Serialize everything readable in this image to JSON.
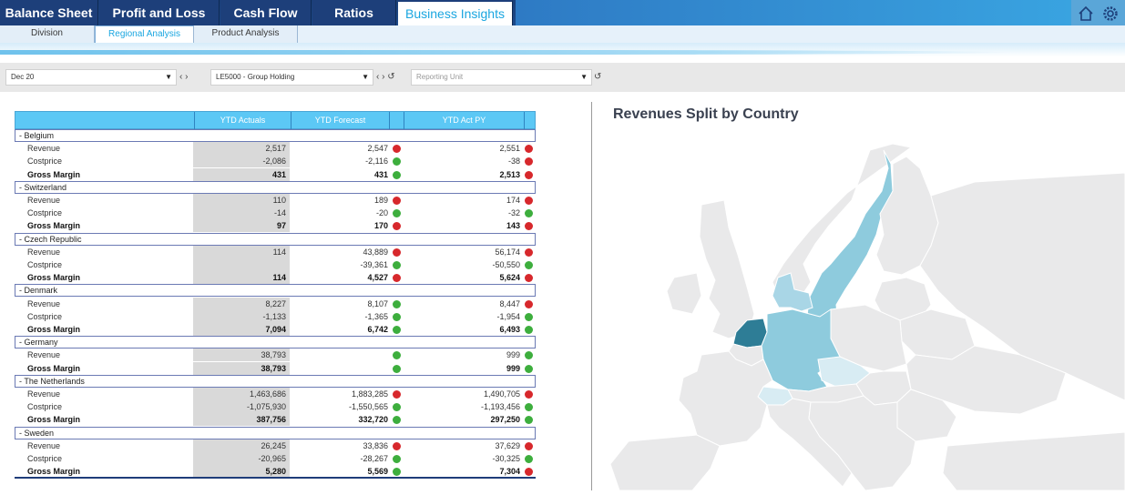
{
  "nav": {
    "tabs": [
      "Balance Sheet",
      "Profit and Loss",
      "Cash Flow",
      "Ratios",
      "Business Insights"
    ],
    "active_tab": "Business Insights",
    "icons": [
      "home-icon",
      "gear-icon"
    ]
  },
  "subnav": {
    "tabs": [
      "Division",
      "Regional Analysis",
      "Product Analysis"
    ],
    "active_tab": "Regional Analysis"
  },
  "filters": {
    "period": "Dec 20",
    "entity": "LE5000 - Group Holding",
    "reporting_unit_placeholder": "Reporting Unit"
  },
  "table": {
    "headers": [
      "YTD Actuals",
      "YTD Forecast",
      "YTD Act PY"
    ],
    "groups": [
      {
        "name": "-  Belgium",
        "rows": [
          {
            "label": "Revenue",
            "actual": "2,517",
            "forecast": "2,547",
            "fc_status": "red",
            "py": "2,551",
            "py_status": "red",
            "bold": false
          },
          {
            "label": "Costprice",
            "actual": "-2,086",
            "forecast": "-2,116",
            "fc_status": "green",
            "py": "-38",
            "py_status": "red",
            "bold": false
          },
          {
            "label": "Gross Margin",
            "actual": "431",
            "forecast": "431",
            "fc_status": "green",
            "py": "2,513",
            "py_status": "red",
            "bold": true
          }
        ]
      },
      {
        "name": "-  Switzerland",
        "rows": [
          {
            "label": "Revenue",
            "actual": "110",
            "forecast": "189",
            "fc_status": "red",
            "py": "174",
            "py_status": "red",
            "bold": false
          },
          {
            "label": "Costprice",
            "actual": "-14",
            "forecast": "-20",
            "fc_status": "green",
            "py": "-32",
            "py_status": "green",
            "bold": false
          },
          {
            "label": "Gross Margin",
            "actual": "97",
            "forecast": "170",
            "fc_status": "red",
            "py": "143",
            "py_status": "red",
            "bold": true
          }
        ]
      },
      {
        "name": "-  Czech Republic",
        "rows": [
          {
            "label": "Revenue",
            "actual": "114",
            "forecast": "43,889",
            "fc_status": "red",
            "py": "56,174",
            "py_status": "red",
            "bold": false
          },
          {
            "label": "Costprice",
            "actual": "",
            "forecast": "-39,361",
            "fc_status": "green",
            "py": "-50,550",
            "py_status": "green",
            "bold": false
          },
          {
            "label": "Gross Margin",
            "actual": "114",
            "forecast": "4,527",
            "fc_status": "red",
            "py": "5,624",
            "py_status": "red",
            "bold": true
          }
        ]
      },
      {
        "name": "-  Denmark",
        "rows": [
          {
            "label": "Revenue",
            "actual": "8,227",
            "forecast": "8,107",
            "fc_status": "green",
            "py": "8,447",
            "py_status": "red",
            "bold": false
          },
          {
            "label": "Costprice",
            "actual": "-1,133",
            "forecast": "-1,365",
            "fc_status": "green",
            "py": "-1,954",
            "py_status": "green",
            "bold": false
          },
          {
            "label": "Gross Margin",
            "actual": "7,094",
            "forecast": "6,742",
            "fc_status": "green",
            "py": "6,493",
            "py_status": "green",
            "bold": true
          }
        ]
      },
      {
        "name": "-  Germany",
        "rows": [
          {
            "label": "Revenue",
            "actual": "38,793",
            "forecast": "",
            "fc_status": "green",
            "py": "999",
            "py_status": "green",
            "bold": false
          },
          {
            "label": "Gross Margin",
            "actual": "38,793",
            "forecast": "",
            "fc_status": "green",
            "py": "999",
            "py_status": "green",
            "bold": true
          }
        ]
      },
      {
        "name": "-  The Netherlands",
        "rows": [
          {
            "label": "Revenue",
            "actual": "1,463,686",
            "forecast": "1,883,285",
            "fc_status": "red",
            "py": "1,490,705",
            "py_status": "red",
            "bold": false
          },
          {
            "label": "Costprice",
            "actual": "-1,075,930",
            "forecast": "-1,550,565",
            "fc_status": "green",
            "py": "-1,193,456",
            "py_status": "green",
            "bold": false
          },
          {
            "label": "Gross Margin",
            "actual": "387,756",
            "forecast": "332,720",
            "fc_status": "green",
            "py": "297,250",
            "py_status": "green",
            "bold": true
          }
        ]
      },
      {
        "name": "-  Sweden",
        "rows": [
          {
            "label": "Revenue",
            "actual": "26,245",
            "forecast": "33,836",
            "fc_status": "red",
            "py": "37,629",
            "py_status": "red",
            "bold": false
          },
          {
            "label": "Costprice",
            "actual": "-20,965",
            "forecast": "-28,267",
            "fc_status": "green",
            "py": "-30,325",
            "py_status": "green",
            "bold": false
          },
          {
            "label": "Gross Margin",
            "actual": "5,280",
            "forecast": "5,569",
            "fc_status": "green",
            "py": "7,304",
            "py_status": "red",
            "bold": true
          }
        ]
      }
    ]
  },
  "map": {
    "title": "Revenues Split by Country",
    "colors": {
      "highest": "#2e7d96",
      "high": "#8ecbdd",
      "mid": "#a9d6e6",
      "low": "#d8ecf3",
      "other": "#e9e9ea",
      "sea": "#ffffff"
    }
  }
}
